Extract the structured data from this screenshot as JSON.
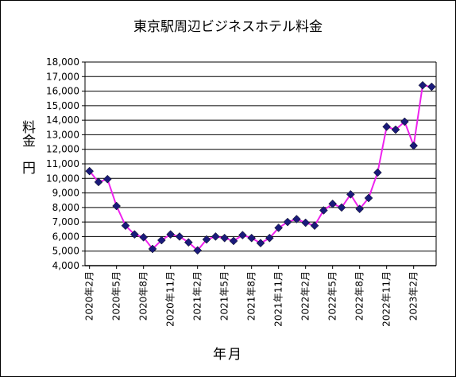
{
  "chart_data": {
    "type": "line",
    "title": "東京駅周辺ビジネスホテル料金",
    "ylabel": "料金　円",
    "xlabel": "年月",
    "ylim": [
      4000,
      18000
    ],
    "y_ticks": [
      "4,000",
      "5,000",
      "6,000",
      "7,000",
      "8,000",
      "9,000",
      "10,000",
      "11,000",
      "12,000",
      "13,000",
      "14,000",
      "15,000",
      "16,000",
      "17,000",
      "18,000"
    ],
    "x_tick_labels": [
      "2020年2月",
      "2020年5月",
      "2020年8月",
      "2020年11月",
      "2021年2月",
      "2021年5月",
      "2021年8月",
      "2021年11月",
      "2022年2月",
      "2022年5月",
      "2022年8月",
      "2022年11月",
      "2023年2月"
    ],
    "grid": true,
    "legend": "none",
    "colors": {
      "line": "#ee22ee",
      "marker": "#1a1a7a",
      "grid": "#000000"
    },
    "series": [
      {
        "x": [
          "2020-02",
          "2020-03",
          "2020-04",
          "2020-05",
          "2020-06",
          "2020-07",
          "2020-08",
          "2020-09",
          "2020-10",
          "2020-11",
          "2020-12",
          "2021-01",
          "2021-02",
          "2021-03",
          "2021-04",
          "2021-05",
          "2021-06",
          "2021-07",
          "2021-08",
          "2021-09",
          "2021-10",
          "2021-11",
          "2021-12",
          "2022-01",
          "2022-02",
          "2022-03",
          "2022-04",
          "2022-05",
          "2022-06",
          "2022-07",
          "2022-08",
          "2022-09",
          "2022-10",
          "2022-11",
          "2022-12",
          "2023-01",
          "2023-02",
          "2023-03",
          "2023-04"
        ],
        "values": [
          10500,
          9750,
          9950,
          8100,
          6750,
          6150,
          5950,
          5150,
          5750,
          6150,
          6000,
          5600,
          5050,
          5800,
          6000,
          5900,
          5700,
          6100,
          5900,
          5550,
          5900,
          6600,
          7000,
          7200,
          6950,
          6750,
          7800,
          8250,
          8000,
          8900,
          7900,
          8650,
          10400,
          13550,
          13350,
          13900,
          12250,
          16400,
          16300
        ]
      }
    ]
  }
}
